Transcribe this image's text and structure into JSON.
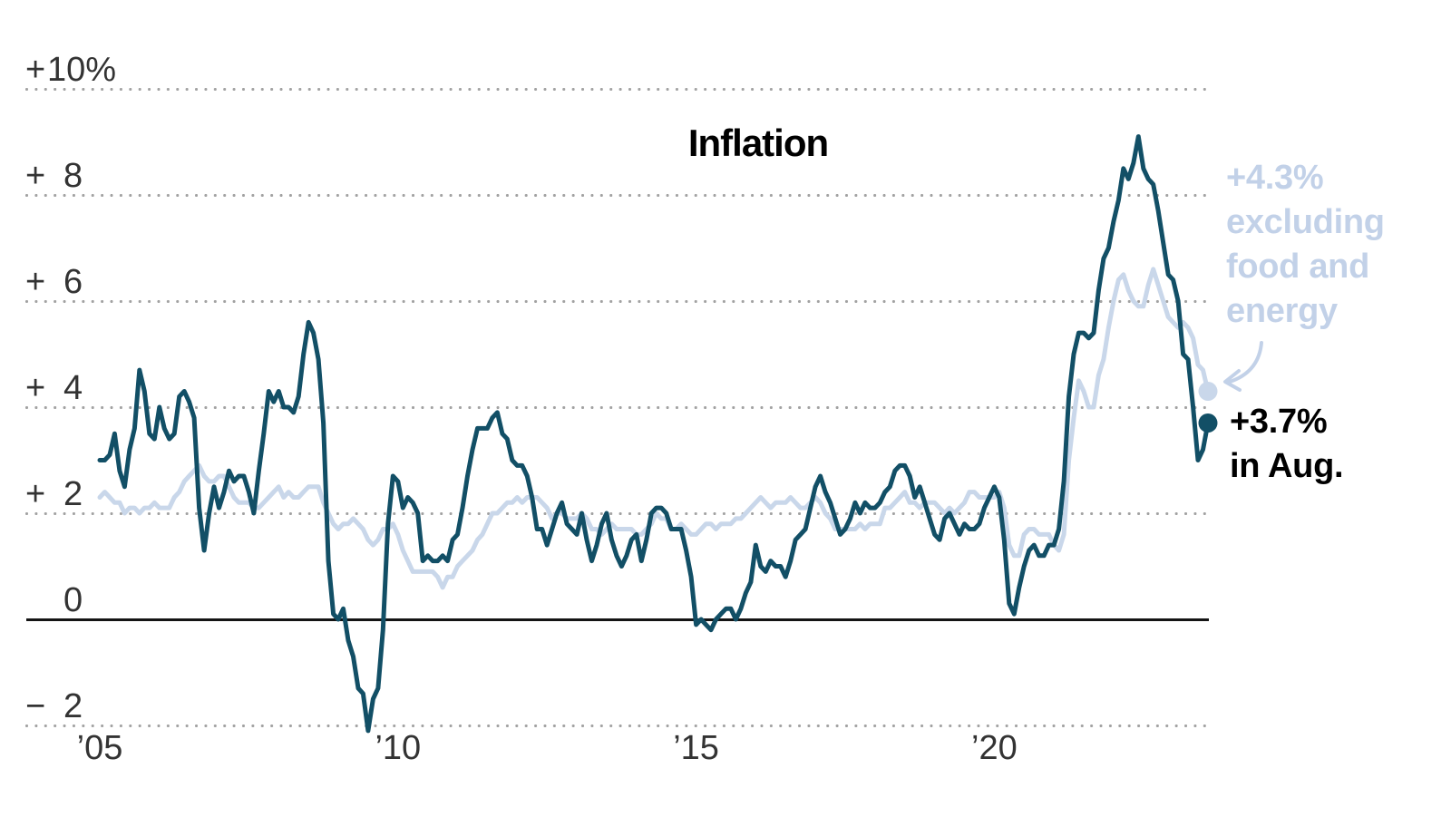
{
  "chart": {
    "title": "Inflation"
  },
  "annotations": {
    "core": {
      "text": "+4.3%\nexcluding\nfood and\nenergy",
      "color": "#c2d1e8"
    },
    "headline": {
      "text": "+3.7%\nin Aug.",
      "color": "#000000"
    }
  },
  "colors": {
    "headline_line": "#124f66",
    "core_line": "#c9d7ea",
    "grid_dots": "#a2a2a2",
    "axis_labels": "#333333",
    "zero_line": "#141414"
  },
  "chart_data": {
    "type": "line",
    "title": "Inflation",
    "x_start": "2005-01",
    "x_end": "2023-08",
    "frequency": "monthly",
    "grid": "dotted-horizontal",
    "ylim": [
      -2.6,
      10.9
    ],
    "x_ticks": [
      {
        "label": "’05",
        "year": 2005
      },
      {
        "label": "’10",
        "year": 2010
      },
      {
        "label": "’15",
        "year": 2015
      },
      {
        "label": "’20",
        "year": 2020
      }
    ],
    "y_ticks": [
      {
        "value": 10,
        "sign": "+",
        "label": "10%"
      },
      {
        "value": 8,
        "sign": "+",
        "label": "8"
      },
      {
        "value": 6,
        "sign": "+",
        "label": "6"
      },
      {
        "value": 4,
        "sign": "+",
        "label": "4"
      },
      {
        "value": 2,
        "sign": "+",
        "label": "2"
      },
      {
        "value": 0,
        "sign": "",
        "label": "0"
      },
      {
        "value": -2,
        "sign": "−",
        "label": "2"
      }
    ],
    "series": [
      {
        "id": "headline",
        "name": "Inflation",
        "end_label": "+3.7% in Aug.",
        "end_value": 3.7,
        "color": "#124f66",
        "values": [
          3.0,
          3.0,
          3.1,
          3.5,
          2.8,
          2.5,
          3.2,
          3.6,
          4.7,
          4.3,
          3.5,
          3.4,
          4.0,
          3.6,
          3.4,
          3.5,
          4.2,
          4.3,
          4.1,
          3.8,
          2.1,
          1.3,
          2.0,
          2.5,
          2.1,
          2.4,
          2.8,
          2.6,
          2.7,
          2.7,
          2.4,
          2.0,
          2.8,
          3.5,
          4.3,
          4.1,
          4.3,
          4.0,
          4.0,
          3.9,
          4.2,
          5.0,
          5.6,
          5.4,
          4.9,
          3.7,
          1.1,
          0.1,
          0.0,
          0.2,
          -0.4,
          -0.7,
          -1.3,
          -1.4,
          -2.1,
          -1.5,
          -1.3,
          -0.2,
          1.8,
          2.7,
          2.6,
          2.1,
          2.3,
          2.2,
          2.0,
          1.1,
          1.2,
          1.1,
          1.1,
          1.2,
          1.1,
          1.5,
          1.6,
          2.1,
          2.7,
          3.2,
          3.6,
          3.6,
          3.6,
          3.8,
          3.9,
          3.5,
          3.4,
          3.0,
          2.9,
          2.9,
          2.7,
          2.3,
          1.7,
          1.7,
          1.4,
          1.7,
          2.0,
          2.2,
          1.8,
          1.7,
          1.6,
          2.0,
          1.5,
          1.1,
          1.4,
          1.8,
          2.0,
          1.5,
          1.2,
          1.0,
          1.2,
          1.5,
          1.6,
          1.1,
          1.5,
          2.0,
          2.1,
          2.1,
          2.0,
          1.7,
          1.7,
          1.7,
          1.3,
          0.8,
          -0.1,
          0.0,
          -0.1,
          -0.2,
          0.0,
          0.1,
          0.2,
          0.2,
          0.0,
          0.2,
          0.5,
          0.7,
          1.4,
          1.0,
          0.9,
          1.1,
          1.0,
          1.0,
          0.8,
          1.1,
          1.5,
          1.6,
          1.7,
          2.1,
          2.5,
          2.7,
          2.4,
          2.2,
          1.9,
          1.6,
          1.7,
          1.9,
          2.2,
          2.0,
          2.2,
          2.1,
          2.1,
          2.2,
          2.4,
          2.5,
          2.8,
          2.9,
          2.9,
          2.7,
          2.3,
          2.5,
          2.2,
          1.9,
          1.6,
          1.5,
          1.9,
          2.0,
          1.8,
          1.6,
          1.8,
          1.7,
          1.7,
          1.8,
          2.1,
          2.3,
          2.5,
          2.3,
          1.5,
          0.3,
          0.1,
          0.6,
          1.0,
          1.3,
          1.4,
          1.2,
          1.2,
          1.4,
          1.4,
          1.7,
          2.6,
          4.2,
          5.0,
          5.4,
          5.4,
          5.3,
          5.4,
          6.2,
          6.8,
          7.0,
          7.5,
          7.9,
          8.5,
          8.3,
          8.6,
          9.1,
          8.5,
          8.3,
          8.2,
          7.7,
          7.1,
          6.5,
          6.4,
          6.0,
          5.0,
          4.9,
          4.0,
          3.0,
          3.2,
          3.7
        ]
      },
      {
        "id": "core",
        "name": "Excluding food and energy",
        "end_label": "+4.3%",
        "end_value": 4.3,
        "color": "#c9d7ea",
        "values": [
          2.3,
          2.4,
          2.3,
          2.2,
          2.2,
          2.0,
          2.1,
          2.1,
          2.0,
          2.1,
          2.1,
          2.2,
          2.1,
          2.1,
          2.1,
          2.3,
          2.4,
          2.6,
          2.7,
          2.8,
          2.9,
          2.7,
          2.6,
          2.6,
          2.7,
          2.7,
          2.5,
          2.3,
          2.2,
          2.2,
          2.2,
          2.1,
          2.1,
          2.2,
          2.3,
          2.4,
          2.5,
          2.3,
          2.4,
          2.3,
          2.3,
          2.4,
          2.5,
          2.5,
          2.5,
          2.2,
          2.0,
          1.8,
          1.7,
          1.8,
          1.8,
          1.9,
          1.8,
          1.7,
          1.5,
          1.4,
          1.5,
          1.7,
          1.7,
          1.8,
          1.6,
          1.3,
          1.1,
          0.9,
          0.9,
          0.9,
          0.9,
          0.9,
          0.8,
          0.6,
          0.8,
          0.8,
          1.0,
          1.1,
          1.2,
          1.3,
          1.5,
          1.6,
          1.8,
          2.0,
          2.0,
          2.1,
          2.2,
          2.2,
          2.3,
          2.2,
          2.3,
          2.3,
          2.3,
          2.2,
          2.1,
          1.9,
          2.0,
          2.0,
          1.9,
          1.9,
          1.9,
          2.0,
          1.9,
          1.7,
          1.7,
          1.6,
          1.7,
          1.8,
          1.7,
          1.7,
          1.7,
          1.7,
          1.6,
          1.6,
          1.7,
          1.8,
          2.0,
          1.9,
          1.9,
          1.7,
          1.7,
          1.8,
          1.7,
          1.6,
          1.6,
          1.7,
          1.8,
          1.8,
          1.7,
          1.8,
          1.8,
          1.8,
          1.9,
          1.9,
          2.0,
          2.1,
          2.2,
          2.3,
          2.2,
          2.1,
          2.2,
          2.2,
          2.2,
          2.3,
          2.2,
          2.1,
          2.1,
          2.2,
          2.3,
          2.2,
          2.0,
          1.9,
          1.7,
          1.7,
          1.7,
          1.7,
          1.7,
          1.8,
          1.7,
          1.8,
          1.8,
          1.8,
          2.1,
          2.1,
          2.2,
          2.3,
          2.4,
          2.2,
          2.2,
          2.1,
          2.2,
          2.2,
          2.2,
          2.1,
          2.0,
          2.1,
          2.0,
          2.1,
          2.2,
          2.4,
          2.4,
          2.3,
          2.3,
          2.3,
          2.3,
          2.4,
          2.1,
          1.4,
          1.2,
          1.2,
          1.6,
          1.7,
          1.7,
          1.6,
          1.6,
          1.6,
          1.4,
          1.3,
          1.6,
          3.0,
          3.8,
          4.5,
          4.3,
          4.0,
          4.0,
          4.6,
          4.9,
          5.5,
          6.0,
          6.4,
          6.5,
          6.2,
          6.0,
          5.9,
          5.9,
          6.3,
          6.6,
          6.3,
          6.0,
          5.7,
          5.6,
          5.5,
          5.6,
          5.5,
          5.3,
          4.8,
          4.7,
          4.3
        ]
      }
    ]
  }
}
